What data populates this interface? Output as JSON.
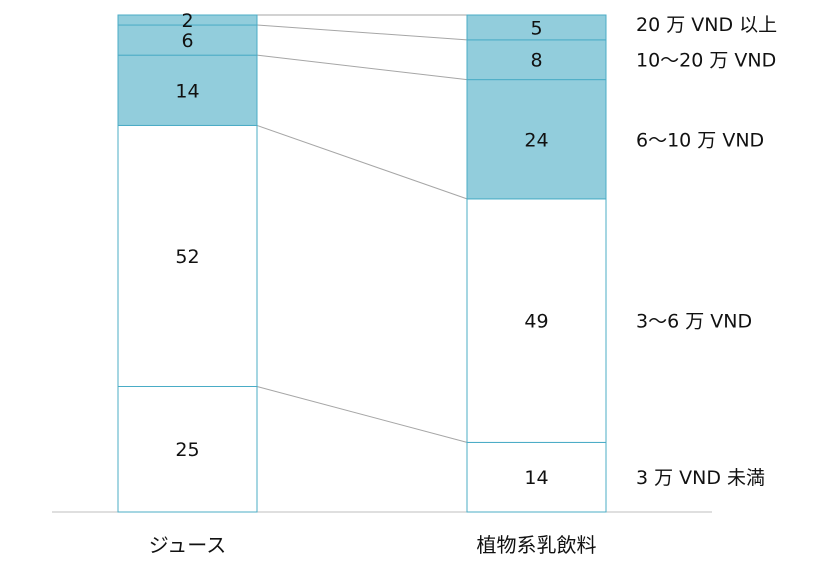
{
  "chart_data": {
    "type": "bar",
    "stacked": true,
    "categories": [
      "ジュース",
      "植物系乳飲料"
    ],
    "series": [
      {
        "name": "3 万 VND 未満",
        "values": [
          25,
          14
        ],
        "color": "#ffffff"
      },
      {
        "name": "3〜6 万 VND",
        "values": [
          52,
          49
        ],
        "color": "#ffffff"
      },
      {
        "name": "6〜10 万 VND",
        "values": [
          14,
          24
        ],
        "color": "#92cddc"
      },
      {
        "name": "10〜20 万 VND",
        "values": [
          6,
          8
        ],
        "color": "#92cddc"
      },
      {
        "name": "20 万 VND 以上",
        "values": [
          2,
          5
        ],
        "color": "#92cddc"
      }
    ],
    "legend_position": "right",
    "series_connector_lines": true,
    "border_color": "#4bacc6",
    "connector_color": "#a6a6a6"
  }
}
